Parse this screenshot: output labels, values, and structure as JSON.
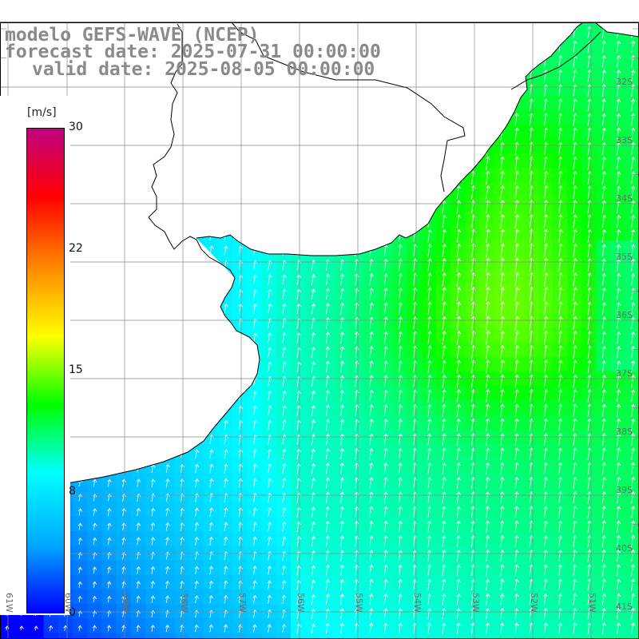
{
  "titles": {
    "model": "modelo GEFS-WAVE (NCEP)",
    "forecast": "forecast date: 2025-07-31 00:00:00",
    "valid": "valid date: 2025-08-05 00:00:00"
  },
  "colorbar": {
    "units": "[m/s]",
    "ticks": [
      "30",
      "22",
      "15",
      "8",
      "0"
    ],
    "colors": [
      "#0000ff",
      "#00a8ff",
      "#00ffff",
      "#00ff00",
      "#ffff00",
      "#ff8c00",
      "#ff0000",
      "#c00080"
    ]
  },
  "map": {
    "lat_labels": [
      "32S",
      "33S",
      "34S",
      "35S",
      "36S",
      "37S",
      "38S",
      "39S",
      "40S",
      "41S"
    ],
    "lon_labels": [
      "61W",
      "60W",
      "59W",
      "58W",
      "57W",
      "56W",
      "55W",
      "54W",
      "53W",
      "52W",
      "51W"
    ],
    "land_color": "#ffffff",
    "grid_color": "#888888",
    "arrow_color": "#ffffff"
  }
}
